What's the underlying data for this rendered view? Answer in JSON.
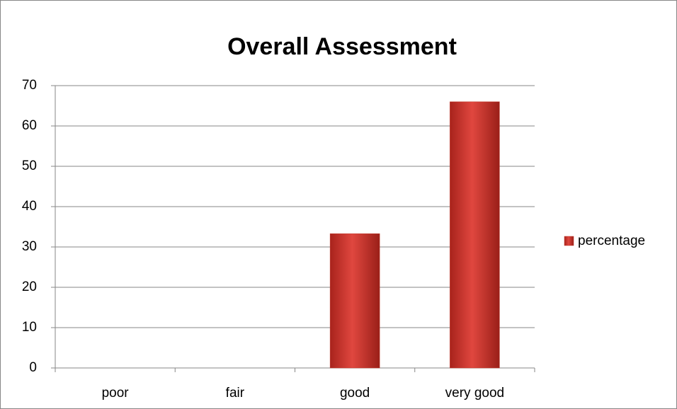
{
  "chart_data": {
    "type": "bar",
    "title": "Overall Assessment",
    "categories": [
      "poor",
      "fair",
      "good",
      "very good"
    ],
    "series": [
      {
        "name": "percentage",
        "color": "#c0392b",
        "values": [
          0,
          0,
          33.3,
          66
        ]
      }
    ],
    "ylim": [
      0,
      70
    ],
    "yticks": [
      0,
      10,
      20,
      30,
      40,
      50,
      60,
      70
    ],
    "grid": true,
    "legend": "right"
  }
}
